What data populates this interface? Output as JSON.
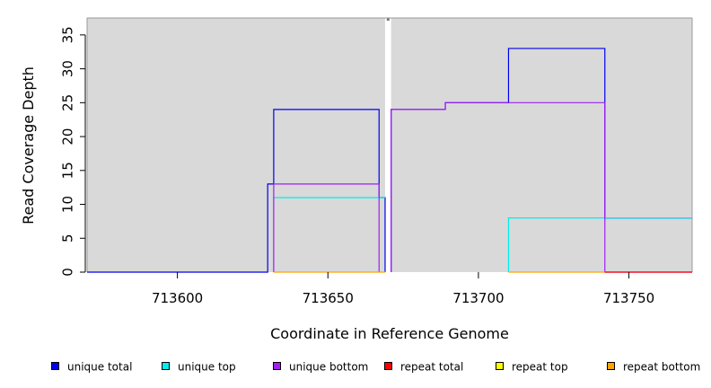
{
  "chart_data": {
    "type": "line",
    "xlabel": "Coordinate in Reference Genome",
    "ylabel": "Read Coverage Depth",
    "xlim": [
      713570,
      713771
    ],
    "ylim": [
      0,
      37.5
    ],
    "x_ticks": [
      713600,
      713650,
      713700,
      713750
    ],
    "y_ticks": [
      0,
      5,
      10,
      15,
      20,
      25,
      30,
      35
    ],
    "background": "#d9d9d9",
    "gap": [
      713669,
      713671
    ],
    "legend_position": "bottom",
    "series": [
      {
        "name": "unique total",
        "color": "#0000ee",
        "points": [
          [
            713570,
            0
          ],
          [
            713630,
            0
          ],
          [
            713630,
            13
          ],
          [
            713632,
            13
          ],
          [
            713632,
            24
          ],
          [
            713667,
            24
          ],
          [
            713667,
            11
          ],
          [
            713669,
            11
          ],
          [
            713669,
            0
          ],
          [
            713671,
            0
          ],
          [
            713671,
            24
          ],
          [
            713689,
            24
          ],
          [
            713689,
            25
          ],
          [
            713710,
            25
          ],
          [
            713710,
            33
          ],
          [
            713742,
            33
          ],
          [
            713742,
            8
          ],
          [
            713771,
            8
          ]
        ]
      },
      {
        "name": "unique top",
        "color": "#00eeee",
        "points": [
          [
            713632,
            0
          ],
          [
            713632,
            11
          ],
          [
            713669,
            11
          ],
          [
            713710,
            0
          ],
          [
            713710,
            8
          ],
          [
            713771,
            8
          ]
        ]
      },
      {
        "name": "unique bottom",
        "color": "#a020f0",
        "points": [
          [
            713632,
            0
          ],
          [
            713632,
            13
          ],
          [
            713667,
            13
          ],
          [
            713667,
            0
          ],
          [
            713671,
            0
          ],
          [
            713671,
            24
          ],
          [
            713689,
            24
          ],
          [
            713689,
            25
          ],
          [
            713742,
            25
          ],
          [
            713742,
            0
          ],
          [
            713771,
            0
          ]
        ]
      },
      {
        "name": "repeat total",
        "color": "#ff0000",
        "points": [
          [
            713742,
            0
          ],
          [
            713771,
            0
          ]
        ]
      },
      {
        "name": "repeat top",
        "color": "#ffff00",
        "points": []
      },
      {
        "name": "repeat bottom",
        "color": "#ffa500",
        "points": [
          [
            713632,
            0
          ],
          [
            713669,
            0
          ],
          [
            713710,
            0
          ],
          [
            713742,
            0
          ]
        ]
      }
    ]
  }
}
